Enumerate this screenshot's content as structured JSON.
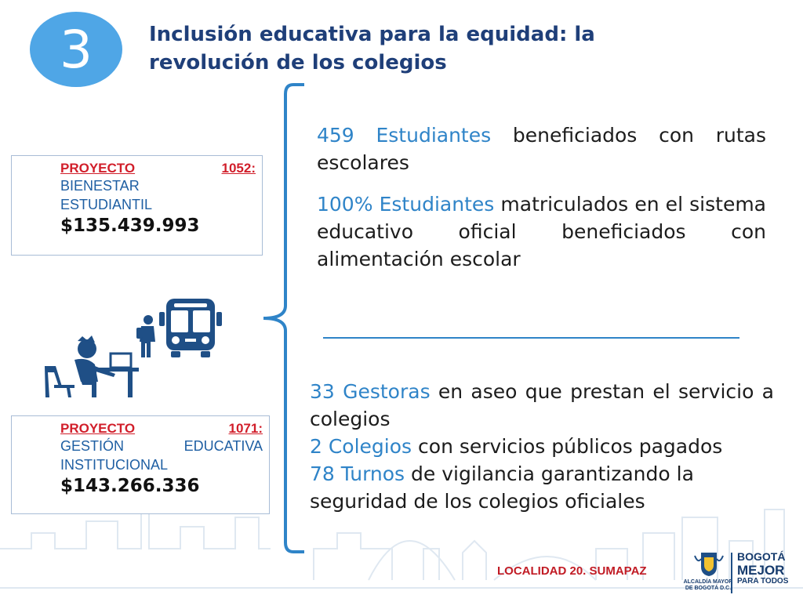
{
  "badge": {
    "number": "3"
  },
  "title": "Inclusión educativa para la equidad: la revolución de los colegios",
  "projects": [
    {
      "code_label": "PROYECTO",
      "code_number": "1052:",
      "name_line1": "BIENESTAR",
      "name_line2": "ESTUDIANTIL",
      "amount": "$135.439.993"
    },
    {
      "code_label": "PROYECTO",
      "code_number": "1071:",
      "name_line1": "GESTIÓN EDUCATIVA",
      "name_line2": "INSTITUCIONAL",
      "amount": "$143.266.336"
    }
  ],
  "info_top": [
    {
      "highlight": "459 Estudiantes",
      "text": " beneficiados con rutas escolares"
    },
    {
      "highlight": "100% Estudiantes",
      "text": " matriculados en el sistema educativo oficial beneficiados con alimentación escolar"
    }
  ],
  "info_bottom": [
    {
      "highlight": "33 Gestoras",
      "text": " en aseo que prestan el servicio a colegios"
    },
    {
      "highlight": "2 Colegios",
      "text": " con servicios públicos pagados"
    },
    {
      "highlight": "78 Turnos",
      "text": " de vigilancia garantizando la seguridad de los colegios oficiales"
    }
  ],
  "footer": {
    "locality": "LOCALIDAD 20. SUMAPAZ",
    "alcaldia_line1": "ALCALDÍA MAYOR",
    "alcaldia_line2": "DE BOGOTÁ D.C.",
    "brand_line1": "BOGOTÁ",
    "brand_line2": "MEJOR",
    "brand_line3": "PARA TODOS"
  },
  "icons": [
    "bus-icon",
    "student-icon",
    "student-at-desk-icon",
    "coat-of-arms-icon"
  ],
  "colors": {
    "accent": "#2f84c8",
    "title": "#1f3f79",
    "project_code": "#d11e2a",
    "footer": "#c11b24"
  }
}
